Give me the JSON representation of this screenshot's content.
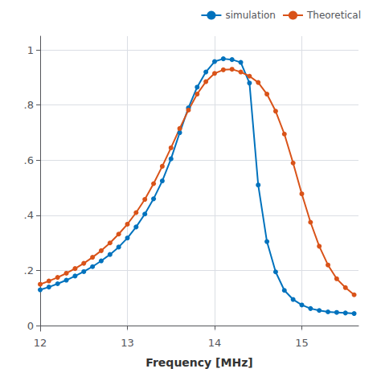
{
  "chart_data": {
    "type": "line",
    "xlabel": "Frequency [MHz]",
    "x": [
      12.0,
      12.1,
      12.2,
      12.3,
      12.4,
      12.5,
      12.6,
      12.7,
      12.8,
      12.9,
      13.0,
      13.1,
      13.2,
      13.3,
      13.4,
      13.5,
      13.6,
      13.7,
      13.8,
      13.9,
      14.0,
      14.1,
      14.2,
      14.3,
      14.4,
      14.5,
      14.6,
      14.7,
      14.8,
      14.9,
      15.0,
      15.1,
      15.2,
      15.3,
      15.4,
      15.5,
      15.6
    ],
    "series": [
      {
        "name": "simulation",
        "color": "#0072BD",
        "marker": "circle",
        "values": [
          0.13,
          0.14,
          0.152,
          0.165,
          0.18,
          0.196,
          0.214,
          0.235,
          0.258,
          0.285,
          0.318,
          0.358,
          0.405,
          0.46,
          0.525,
          0.605,
          0.7,
          0.79,
          0.865,
          0.92,
          0.958,
          0.968,
          0.965,
          0.955,
          0.88,
          0.51,
          0.305,
          0.195,
          0.128,
          0.095,
          0.075,
          0.062,
          0.055,
          0.05,
          0.048,
          0.046,
          0.044
        ]
      },
      {
        "name": "Theoretical",
        "color": "#D95319",
        "marker": "circle",
        "values": [
          0.15,
          0.162,
          0.175,
          0.19,
          0.207,
          0.226,
          0.248,
          0.272,
          0.3,
          0.332,
          0.368,
          0.41,
          0.458,
          0.515,
          0.578,
          0.645,
          0.715,
          0.782,
          0.84,
          0.885,
          0.915,
          0.928,
          0.93,
          0.92,
          0.905,
          0.882,
          0.84,
          0.778,
          0.695,
          0.59,
          0.478,
          0.375,
          0.288,
          0.22,
          0.17,
          0.138,
          0.112
        ]
      }
    ],
    "xlim": [
      12,
      15.65
    ],
    "xticks": [
      12,
      13,
      14,
      15
    ],
    "ylim": [
      -0.02,
      1.05
    ],
    "yticks": [
      0,
      {
        "value": 0.2,
        "label": ".2"
      },
      {
        "value": 0.4,
        "label": ".4"
      },
      {
        "value": 0.6,
        "label": ".6"
      },
      {
        "value": 0.8,
        "label": ".8"
      },
      1
    ],
    "grid": true,
    "legend": "upper right"
  }
}
